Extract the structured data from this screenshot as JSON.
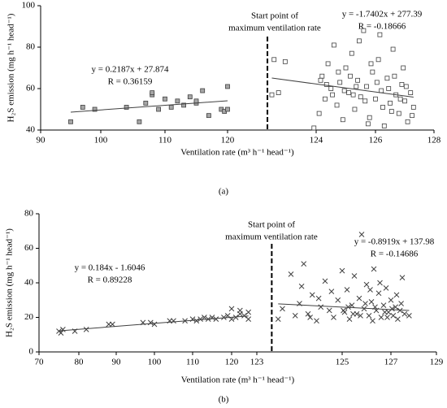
{
  "chart_data": [
    {
      "type": "scatter",
      "panel_label": "(a)",
      "xlabel": "Ventilation rate (m³ h⁻¹ head⁻¹)",
      "ylabel": "H₂S emission (mg h⁻¹ head⁻¹)",
      "xticks": [
        90,
        100,
        110,
        120,
        124,
        126,
        128
      ],
      "xlim": [
        90,
        128
      ],
      "ylim": [
        40,
        100
      ],
      "yticks": [
        40,
        60,
        80,
        100
      ],
      "vline": {
        "x": 121.8,
        "lines": [
          "Start point of",
          "maximum ventilation rate"
        ]
      },
      "series": [
        {
          "marker": "square",
          "color": "#a6a6a6",
          "x": [
            95,
            97,
            99,
            104,
            106,
            107,
            108,
            108,
            109,
            110,
            111,
            112,
            113,
            114,
            115,
            115,
            116,
            117,
            119,
            119.5,
            120,
            120
          ],
          "values": [
            44,
            51,
            50,
            51,
            44,
            53,
            57,
            58,
            50,
            55,
            51,
            54,
            52,
            56,
            53,
            54,
            59,
            47,
            50,
            49,
            61,
            50
          ],
          "trend": {
            "label": "y = 0.2187x + 27.874",
            "r_label": "R = 0.36159",
            "slope": 0.2187,
            "intercept": 27.874,
            "r": 0.36159
          }
        },
        {
          "marker": "square",
          "color": "#ffffff",
          "x": [
            122.0,
            122.1,
            122.3,
            122.6,
            123.9,
            124.1,
            124.2,
            124.3,
            124.4,
            124.5,
            124.6,
            124.7,
            124.8,
            124.9,
            125.0,
            125.1,
            125.2,
            125.3,
            125.4,
            125.5,
            125.6,
            125.7,
            125.8,
            125.9,
            126.0,
            126.1,
            126.2,
            126.3,
            126.4,
            126.5,
            126.6,
            126.7,
            126.8,
            126.9,
            127.0,
            127.1,
            127.2,
            127.3,
            124.35,
            124.55,
            124.95,
            125.15,
            125.35,
            125.65,
            125.85,
            126.05,
            126.25,
            126.45,
            126.65,
            126.85,
            127.05,
            127.25,
            125.45,
            124.15,
            126.15,
            125.75,
            126.95,
            124.75,
            125.25,
            126.55
          ],
          "values": [
            57,
            74,
            58,
            73,
            41,
            48,
            66,
            55,
            72,
            60,
            81,
            52,
            63,
            45,
            70,
            58,
            77,
            50,
            64,
            56,
            88,
            61,
            46,
            68,
            55,
            74,
            59,
            42,
            65,
            53,
            79,
            57,
            48,
            62,
            54,
            44,
            58,
            51,
            62,
            57,
            59,
            66,
            61,
            54,
            72,
            63,
            51,
            60,
            66,
            55,
            61,
            47,
            83,
            64,
            86,
            43,
            70,
            68,
            57,
            49
          ],
          "trend": {
            "label": "y = -1.7402x + 277.39",
            "r_label": "R = -0.18666",
            "slope": -1.7402,
            "intercept": 277.39,
            "r": -0.18666
          }
        }
      ]
    },
    {
      "type": "scatter",
      "panel_label": "(b)",
      "xlabel": "Ventilation rate (m³ h⁻¹ head⁻¹)",
      "ylabel": "H₂S emission (mg h⁻¹ head⁻¹)",
      "xticks": [
        70,
        80,
        90,
        100,
        110,
        120,
        123,
        125,
        127,
        129
      ],
      "xlim": [
        70,
        129
      ],
      "ylim": [
        0,
        80
      ],
      "yticks": [
        0,
        20,
        40,
        60,
        80
      ],
      "vline": {
        "x": 123.35,
        "lines": [
          "Start point of",
          "maximum ventilation rate"
        ]
      },
      "series": [
        {
          "marker": "x",
          "color": "#404040",
          "x": [
            75,
            75.5,
            76,
            79,
            82,
            88,
            89,
            97,
            99,
            100,
            104,
            105,
            108,
            110,
            111,
            112,
            113,
            114,
            115,
            116,
            118,
            119,
            120,
            120.5,
            121,
            121.5,
            122,
            122,
            120,
            121
          ],
          "values": [
            12,
            11,
            13,
            12,
            13,
            16,
            16,
            17,
            17,
            16,
            18,
            18,
            18,
            19,
            18,
            19,
            20,
            19,
            20,
            19,
            20,
            21,
            25,
            20,
            22,
            21,
            23,
            19,
            19,
            24
          ],
          "trend": {
            "label": "y = 0.184x - 1.6046",
            "r_label": "R = 0.89228",
            "slope": 0.184,
            "intercept": -1.6046,
            "r": 0.89228
          }
        },
        {
          "marker": "x",
          "color": "#404040",
          "x": [
            123.5,
            123.6,
            123.8,
            123.9,
            124.0,
            124.1,
            124.2,
            124.3,
            124.4,
            124.5,
            124.6,
            124.7,
            124.8,
            124.9,
            125.0,
            125.1,
            125.2,
            125.3,
            125.4,
            125.5,
            125.6,
            125.7,
            125.8,
            125.9,
            126.0,
            126.1,
            126.2,
            126.3,
            126.4,
            126.5,
            126.6,
            126.7,
            126.8,
            126.9,
            127.0,
            127.1,
            127.2,
            127.3,
            127.4,
            127.5,
            127.6,
            127.8,
            124.25,
            124.75,
            125.25,
            125.75,
            126.25,
            126.75,
            127.25,
            125.45,
            126.15,
            126.85,
            124.45,
            125.95,
            127.05,
            127.45,
            126.55,
            125.05,
            124.05,
            126.35
          ],
          "values": [
            19,
            25,
            45,
            21,
            28,
            51,
            22,
            33,
            18,
            26,
            41,
            24,
            20,
            30,
            47,
            23,
            36,
            19,
            27,
            44,
            22,
            31,
            68,
            25,
            39,
            21,
            29,
            48,
            24,
            34,
            20,
            27,
            37,
            23,
            30,
            21,
            26,
            19,
            24,
            43,
            22,
            21,
            20,
            35,
            26,
            21,
            18,
            23,
            33,
            22,
            36,
            20,
            31,
            28,
            25,
            28,
            40,
            24,
            38,
            26
          ],
          "trend": {
            "label": "y = -0.8919x + 137.98",
            "r_label": "R = -0.14686",
            "slope": -0.8919,
            "intercept": 137.98,
            "r": -0.14686
          }
        }
      ]
    }
  ]
}
